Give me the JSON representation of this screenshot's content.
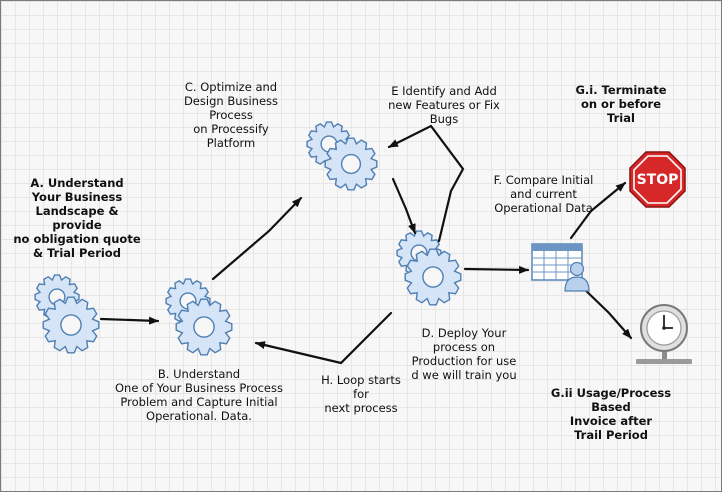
{
  "nodes": {
    "a": {
      "label": "A. Understand\nYour Business\nLandscape &\nprovide\nno obligation quote\n& Trial Period"
    },
    "b": {
      "label": "B. Understand\nOne of Your Business Process\nProblem and Capture Initial\nOperational. Data."
    },
    "c": {
      "label": "C. Optimize and\nDesign Business\nProcess\non Processify\nPlatform"
    },
    "d": {
      "label": "D. Deploy Your\nprocess on\nProduction for use\nd we will train you"
    },
    "e": {
      "label": "E Identify and Add\nnew Features or Fix\nBugs"
    },
    "f": {
      "label": "F. Compare Initial\nand current\nOperational Data"
    },
    "gi": {
      "label": "G.i. Terminate\non or before\nTrial"
    },
    "gii": {
      "label": "G.ii Usage/Process\nBased\nInvoice after\nTrail Period"
    },
    "h": {
      "label": "H. Loop starts\nfor\nnext process"
    }
  },
  "icons": {
    "stop": {
      "text": "STOP",
      "name": "stop-sign-icon",
      "color": "#d62828"
    },
    "clock": {
      "name": "clock-icon"
    },
    "report": {
      "name": "user-report-icon"
    },
    "gear": {
      "name": "gear-icon",
      "fill": "#d5e5f7",
      "stroke": "#4f7fb3"
    }
  }
}
